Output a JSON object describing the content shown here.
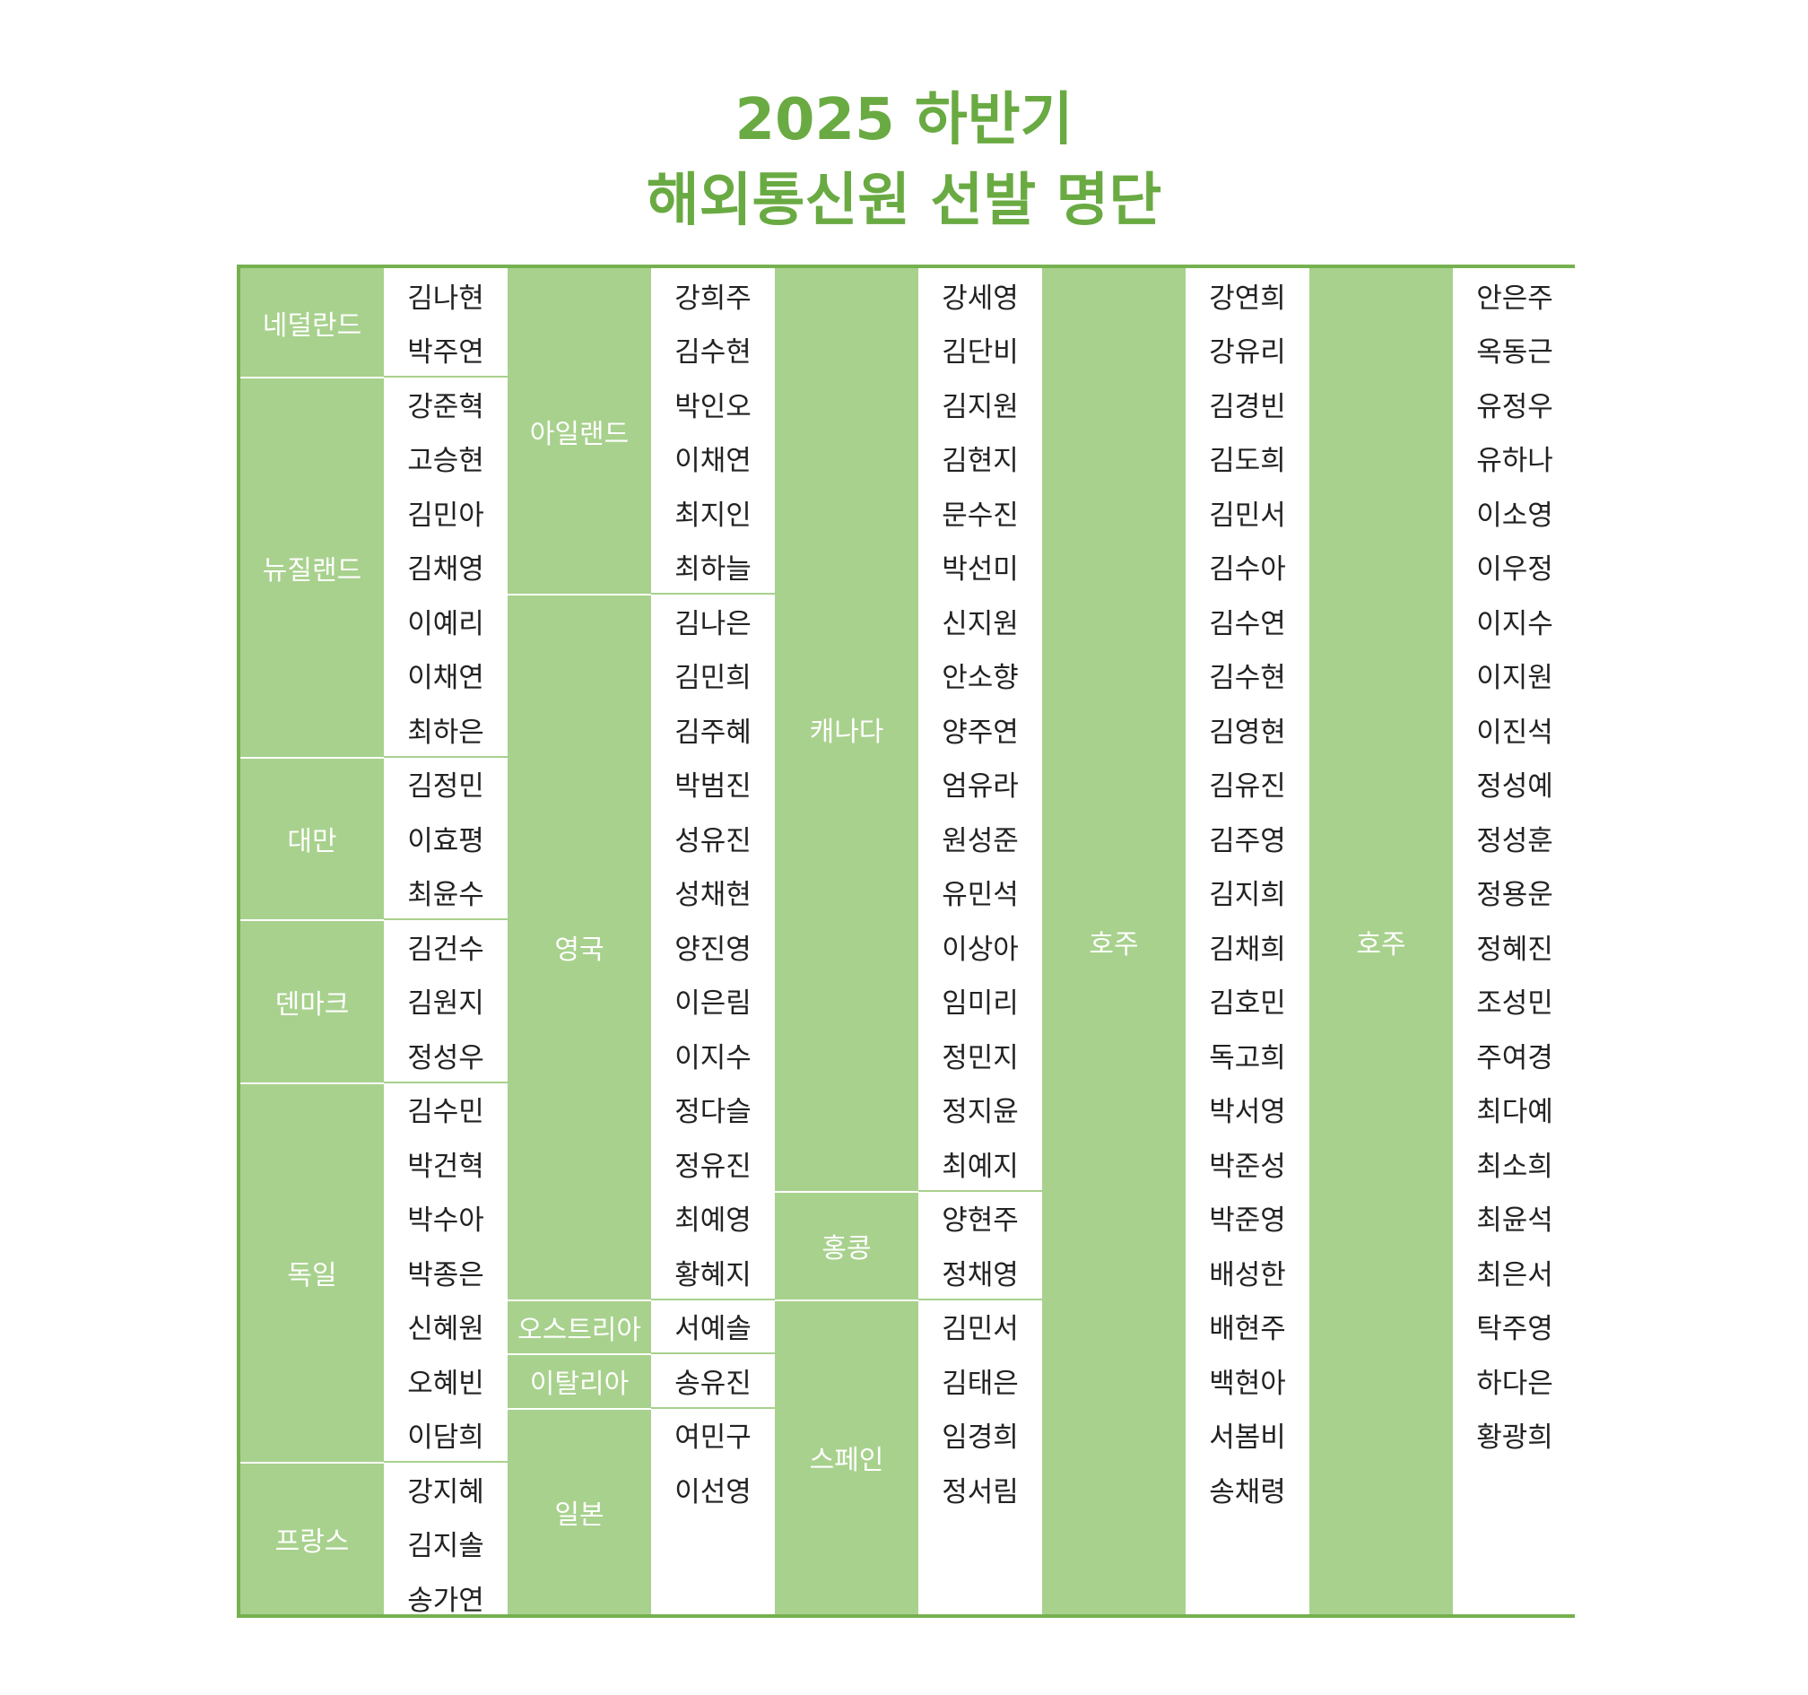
{
  "title": {
    "line1": "2025 하반기",
    "line2": "해외통신원 선발 명단"
  },
  "columns": [
    {
      "groups": [
        {
          "country": "네덜란드",
          "names": [
            "김나현",
            "박주연"
          ]
        },
        {
          "country": "뉴질랜드",
          "names": [
            "강준혁",
            "고승현",
            "김민아",
            "김채영",
            "이예리",
            "이채연",
            "최하은"
          ]
        },
        {
          "country": "대만",
          "names": [
            "김정민",
            "이효평",
            "최윤수"
          ]
        },
        {
          "country": "덴마크",
          "names": [
            "김건수",
            "김원지",
            "정성우"
          ]
        },
        {
          "country": "독일",
          "names": [
            "김수민",
            "박건혁",
            "박수아",
            "박종은",
            "신혜원",
            "오혜빈",
            "이담희"
          ]
        },
        {
          "country": "프랑스",
          "names": [
            "강지혜",
            "김지솔",
            "송가연"
          ]
        }
      ]
    },
    {
      "groups": [
        {
          "country": "아일랜드",
          "names": [
            "강희주",
            "김수현",
            "박인오",
            "이채연",
            "최지인",
            "최하늘"
          ]
        },
        {
          "country": "영국",
          "names": [
            "김나은",
            "김민희",
            "김주혜",
            "박범진",
            "성유진",
            "성채현",
            "양진영",
            "이은림",
            "이지수",
            "정다슬",
            "정유진",
            "최예영",
            "황혜지"
          ]
        },
        {
          "country": "오스트리아",
          "names": [
            "서예솔"
          ]
        },
        {
          "country": "이탈리아",
          "names": [
            "송유진"
          ]
        },
        {
          "country": "일본",
          "names": [
            "여민구",
            "이선영"
          ]
        }
      ]
    },
    {
      "groups": [
        {
          "country": "캐나다",
          "names": [
            "강세영",
            "김단비",
            "김지원",
            "김현지",
            "문수진",
            "박선미",
            "신지원",
            "안소향",
            "양주연",
            "엄유라",
            "원성준",
            "유민석",
            "이상아",
            "임미리",
            "정민지",
            "정지윤",
            "최예지"
          ]
        },
        {
          "country": "홍콩",
          "names": [
            "양현주",
            "정채영"
          ]
        },
        {
          "country": "스페인",
          "names": [
            "김민서",
            "김태은",
            "임경희",
            "정서림"
          ]
        }
      ]
    },
    {
      "groups": [
        {
          "country": "호주",
          "names": [
            "강연희",
            "강유리",
            "김경빈",
            "김도희",
            "김민서",
            "김수아",
            "김수연",
            "김수현",
            "김영현",
            "김유진",
            "김주영",
            "김지희",
            "김채희",
            "김호민",
            "독고희",
            "박서영",
            "박준성",
            "박준영",
            "배성한",
            "배현주",
            "백현아",
            "서봄비",
            "송채령"
          ]
        }
      ]
    },
    {
      "groups": [
        {
          "country": "호주",
          "names": [
            "안은주",
            "옥동근",
            "유정우",
            "유하나",
            "이소영",
            "이우정",
            "이지수",
            "이지원",
            "이진석",
            "정성예",
            "정성훈",
            "정용운",
            "정혜진",
            "조성민",
            "주여경",
            "최다예",
            "최소희",
            "최윤석",
            "최은서",
            "탁주영",
            "하다은",
            "황광희"
          ]
        }
      ]
    }
  ],
  "colors": {
    "title": "#6aaa43",
    "country_bg": "#a8d18d",
    "border": "#76b04f"
  }
}
